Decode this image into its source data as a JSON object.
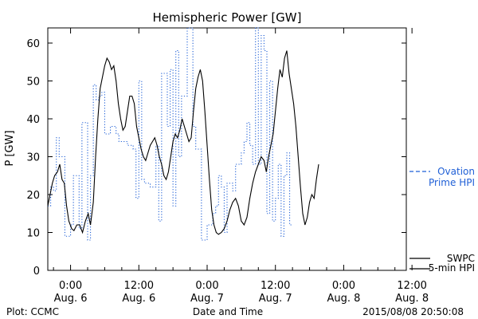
{
  "chart_data": {
    "type": "line",
    "title": "Hemispheric Power [GW]",
    "xlabel": "Date and Time",
    "ylabel": "P [GW]",
    "ylim": [
      0,
      64
    ],
    "xlim": [
      -4,
      59
    ],
    "x_unit": "hours since 2015-08-06 00:00 UT",
    "yticks": [
      0,
      10,
      20,
      30,
      40,
      50,
      60
    ],
    "xticks": [
      {
        "x": 0,
        "time": "0:00",
        "date": "Aug. 6"
      },
      {
        "x": 12,
        "time": "12:00",
        "date": "Aug. 6"
      },
      {
        "x": 24,
        "time": "0:00",
        "date": "Aug. 7"
      },
      {
        "x": 36,
        "time": "12:00",
        "date": "Aug. 7"
      },
      {
        "x": 48,
        "time": "0:00",
        "date": "Aug. 8"
      },
      {
        "x": 60,
        "time": "12:00",
        "date": "Aug. 8"
      }
    ],
    "grid": false,
    "legend_position": "right",
    "series": [
      {
        "name": "Ovation Prime HPI",
        "label_lines": [
          "Ovation",
          "Prime HPI"
        ],
        "color": "#1f5fd6",
        "style": "dotted-step",
        "points": [
          [
            -4.0,
            17
          ],
          [
            -3.5,
            22
          ],
          [
            -3.0,
            21
          ],
          [
            -2.5,
            35
          ],
          [
            -2.0,
            30
          ],
          [
            -1.0,
            9
          ],
          [
            0.0,
            12
          ],
          [
            0.5,
            25
          ],
          [
            1.5,
            11
          ],
          [
            2.0,
            39
          ],
          [
            3.0,
            8
          ],
          [
            3.5,
            25
          ],
          [
            4.0,
            49
          ],
          [
            4.5,
            45
          ],
          [
            5.0,
            46
          ],
          [
            5.5,
            47
          ],
          [
            6.0,
            36
          ],
          [
            7.0,
            38
          ],
          [
            8.0,
            36
          ],
          [
            8.5,
            34
          ],
          [
            10.0,
            33
          ],
          [
            11.0,
            32
          ],
          [
            11.5,
            19
          ],
          [
            12.0,
            50
          ],
          [
            12.5,
            24
          ],
          [
            13.0,
            23
          ],
          [
            14.0,
            22
          ],
          [
            15.0,
            33
          ],
          [
            15.5,
            13
          ],
          [
            16.0,
            52
          ],
          [
            17.0,
            38
          ],
          [
            17.5,
            53
          ],
          [
            18.0,
            17
          ],
          [
            18.5,
            58
          ],
          [
            19.0,
            30
          ],
          [
            19.5,
            46
          ],
          [
            20.5,
            64
          ],
          [
            21.5,
            38
          ],
          [
            22.0,
            32
          ],
          [
            23.0,
            8
          ],
          [
            23.5,
            8
          ],
          [
            24.0,
            12
          ],
          [
            25.0,
            15
          ],
          [
            25.5,
            17
          ],
          [
            26.0,
            25
          ],
          [
            26.5,
            22
          ],
          [
            27.0,
            10
          ],
          [
            27.5,
            23
          ],
          [
            28.5,
            21
          ],
          [
            29.0,
            28
          ],
          [
            30.0,
            31
          ],
          [
            30.5,
            34
          ],
          [
            31.0,
            39
          ],
          [
            31.5,
            33
          ],
          [
            32.0,
            28
          ],
          [
            32.5,
            64
          ],
          [
            33.0,
            28
          ],
          [
            33.5,
            62
          ],
          [
            34.0,
            58
          ],
          [
            34.5,
            15
          ],
          [
            35.0,
            50
          ],
          [
            35.5,
            13
          ],
          [
            36.0,
            19
          ],
          [
            36.5,
            28
          ],
          [
            37.0,
            9
          ],
          [
            37.5,
            25
          ],
          [
            38.0,
            31
          ],
          [
            38.5,
            12
          ]
        ]
      },
      {
        "name": "SWPC 5-min HPI",
        "label_lines": [
          "SWPC",
          "5-min HPI"
        ],
        "color": "#000000",
        "style": "solid",
        "points": [
          [
            -4.0,
            17
          ],
          [
            -3.6,
            20
          ],
          [
            -3.2,
            23
          ],
          [
            -2.8,
            25
          ],
          [
            -2.3,
            26
          ],
          [
            -1.9,
            28
          ],
          [
            -1.5,
            24
          ],
          [
            -1.1,
            23
          ],
          [
            -0.7,
            17
          ],
          [
            -0.3,
            13
          ],
          [
            0.2,
            11
          ],
          [
            0.6,
            10.5
          ],
          [
            1.1,
            12
          ],
          [
            1.6,
            12
          ],
          [
            2.1,
            10
          ],
          [
            2.6,
            13
          ],
          [
            3.1,
            15
          ],
          [
            3.5,
            12
          ],
          [
            4.0,
            18
          ],
          [
            4.4,
            30
          ],
          [
            4.8,
            40
          ],
          [
            5.2,
            48
          ],
          [
            5.6,
            51
          ],
          [
            6.0,
            54
          ],
          [
            6.4,
            56
          ],
          [
            6.8,
            55
          ],
          [
            7.2,
            53
          ],
          [
            7.6,
            54
          ],
          [
            8.0,
            50
          ],
          [
            8.4,
            44
          ],
          [
            8.8,
            40
          ],
          [
            9.2,
            37
          ],
          [
            9.6,
            38
          ],
          [
            10.0,
            42
          ],
          [
            10.4,
            46
          ],
          [
            10.8,
            46
          ],
          [
            11.2,
            44
          ],
          [
            11.6,
            38
          ],
          [
            12.0,
            35
          ],
          [
            12.4,
            32
          ],
          [
            12.8,
            30
          ],
          [
            13.2,
            29
          ],
          [
            13.6,
            31
          ],
          [
            14.0,
            33
          ],
          [
            14.4,
            34
          ],
          [
            14.8,
            35
          ],
          [
            15.2,
            33
          ],
          [
            15.6,
            30
          ],
          [
            16.0,
            28
          ],
          [
            16.4,
            25
          ],
          [
            16.8,
            24
          ],
          [
            17.2,
            26
          ],
          [
            17.6,
            30
          ],
          [
            18.0,
            34
          ],
          [
            18.4,
            36
          ],
          [
            18.8,
            35
          ],
          [
            19.2,
            37
          ],
          [
            19.6,
            40
          ],
          [
            20.0,
            38
          ],
          [
            20.4,
            36
          ],
          [
            20.8,
            34
          ],
          [
            21.2,
            35
          ],
          [
            21.6,
            42
          ],
          [
            22.0,
            48
          ],
          [
            22.4,
            51
          ],
          [
            22.8,
            53
          ],
          [
            23.2,
            50
          ],
          [
            23.6,
            42
          ],
          [
            24.0,
            33
          ],
          [
            24.4,
            24
          ],
          [
            24.8,
            16
          ],
          [
            25.2,
            12
          ],
          [
            25.6,
            10
          ],
          [
            26.0,
            9.5
          ],
          [
            26.5,
            10
          ],
          [
            27.0,
            11
          ],
          [
            27.5,
            13
          ],
          [
            28.0,
            16
          ],
          [
            28.5,
            18
          ],
          [
            29.0,
            19
          ],
          [
            29.5,
            17
          ],
          [
            30.0,
            13
          ],
          [
            30.5,
            12
          ],
          [
            31.0,
            14
          ],
          [
            31.5,
            19
          ],
          [
            32.0,
            23
          ],
          [
            32.5,
            26
          ],
          [
            33.0,
            28
          ],
          [
            33.5,
            30
          ],
          [
            34.0,
            29
          ],
          [
            34.4,
            26
          ],
          [
            34.8,
            30
          ],
          [
            35.2,
            33
          ],
          [
            35.6,
            36
          ],
          [
            36.0,
            42
          ],
          [
            36.4,
            48
          ],
          [
            36.8,
            53
          ],
          [
            37.2,
            51
          ],
          [
            37.6,
            56
          ],
          [
            38.0,
            58
          ],
          [
            38.4,
            52
          ],
          [
            38.8,
            48
          ],
          [
            39.2,
            44
          ],
          [
            39.6,
            38
          ],
          [
            40.0,
            30
          ],
          [
            40.4,
            22
          ],
          [
            40.8,
            15
          ],
          [
            41.2,
            12
          ],
          [
            41.6,
            14
          ],
          [
            42.0,
            18
          ],
          [
            42.4,
            20
          ],
          [
            42.8,
            19
          ],
          [
            43.2,
            24
          ],
          [
            43.6,
            28
          ]
        ]
      }
    ]
  },
  "footer": {
    "plot_credit": "Plot: CCMC",
    "timestamp": "2015/08/08 20:50:08"
  }
}
